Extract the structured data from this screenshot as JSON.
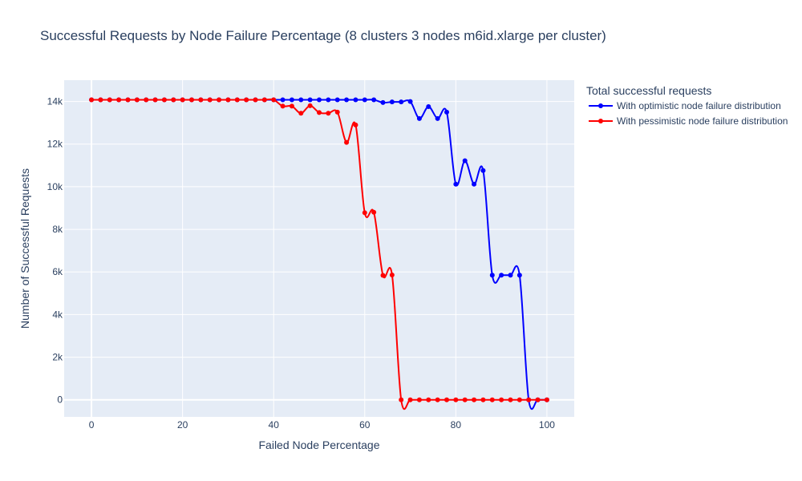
{
  "chart_data": {
    "type": "line",
    "title": "Successful Requests by Node Failure Percentage (8 clusters 3 nodes m6id.xlarge per cluster)",
    "xlabel": "Failed Node Percentage",
    "ylabel": "Number of Successful Requests",
    "xlim": [
      -6,
      106
    ],
    "ylim": [
      -800,
      15000
    ],
    "x_ticks": [
      0,
      20,
      40,
      60,
      80,
      100
    ],
    "x_tick_labels": [
      "0",
      "20",
      "40",
      "60",
      "80",
      "100"
    ],
    "y_ticks": [
      0,
      2000,
      4000,
      6000,
      8000,
      10000,
      12000,
      14000
    ],
    "y_tick_labels": [
      "0",
      "2k",
      "4k",
      "6k",
      "8k",
      "10k",
      "12k",
      "14k"
    ],
    "grid": true,
    "legend": {
      "title": "Total successful requests",
      "position": "right"
    },
    "x": [
      0,
      2,
      4,
      6,
      8,
      10,
      12,
      14,
      16,
      18,
      20,
      22,
      24,
      26,
      28,
      30,
      32,
      34,
      36,
      38,
      40,
      42,
      44,
      46,
      48,
      50,
      52,
      54,
      56,
      58,
      60,
      62,
      64,
      66,
      68,
      70,
      72,
      74,
      76,
      78,
      80,
      82,
      84,
      86,
      88,
      90,
      92,
      94,
      96,
      98,
      100
    ],
    "series": [
      {
        "name": "With optimistic node failure distribution",
        "color": "#0000ff",
        "values": [
          14080,
          14080,
          14080,
          14080,
          14080,
          14080,
          14080,
          14080,
          14080,
          14080,
          14080,
          14080,
          14080,
          14080,
          14080,
          14080,
          14080,
          14080,
          14080,
          14080,
          14080,
          14080,
          14080,
          14080,
          14080,
          14080,
          14080,
          14080,
          14080,
          14080,
          14080,
          14080,
          13950,
          13980,
          13980,
          14000,
          13200,
          13760,
          13200,
          13500,
          10120,
          11220,
          10120,
          10760,
          5850,
          5850,
          5850,
          5850,
          0,
          0,
          0
        ]
      },
      {
        "name": "With pessimistic node failure distribution",
        "color": "#ff0000",
        "values": [
          14080,
          14080,
          14080,
          14080,
          14080,
          14080,
          14080,
          14080,
          14080,
          14080,
          14080,
          14080,
          14080,
          14080,
          14080,
          14080,
          14080,
          14080,
          14080,
          14080,
          14080,
          13780,
          13780,
          13450,
          13800,
          13480,
          13450,
          13500,
          12080,
          12900,
          8780,
          8800,
          5840,
          5860,
          0,
          0,
          0,
          0,
          0,
          0,
          0,
          0,
          0,
          0,
          0,
          0,
          0,
          0,
          0,
          0,
          0
        ]
      }
    ]
  }
}
